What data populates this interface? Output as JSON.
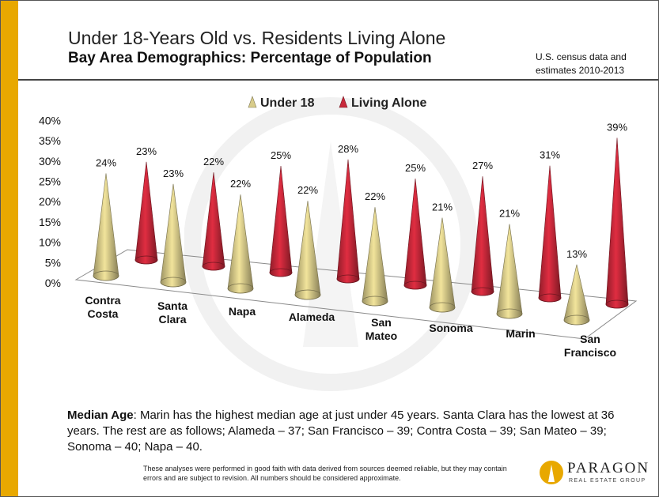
{
  "header": {
    "title": "Under 18-Years Old vs. Residents Living Alone",
    "subtitle": "Bay Area Demographics: Percentage of Population",
    "source_line1": "U.S. census data and",
    "source_line2": "estimates 2010-2013"
  },
  "colors": {
    "accent": "#e8a800",
    "under18": "#d8cc8a",
    "living_alone": "#c8283a",
    "divider": "#444444"
  },
  "chart_data": {
    "type": "bar",
    "style": "3d-cone",
    "categories": [
      [
        "Contra",
        "Costa"
      ],
      [
        "Santa",
        "Clara"
      ],
      [
        "Napa"
      ],
      [
        "Alameda"
      ],
      [
        "San",
        "Mateo"
      ],
      [
        "Sonoma"
      ],
      [
        "Marin"
      ],
      [
        "San",
        "Francisco"
      ]
    ],
    "series": [
      {
        "name": "Under 18",
        "values": [
          24,
          23,
          22,
          22,
          22,
          21,
          21,
          13
        ],
        "labels": [
          "24%",
          "23%",
          "22%",
          "22%",
          "22%",
          "21%",
          "21%",
          "13%"
        ]
      },
      {
        "name": "Living Alone",
        "values": [
          23,
          22,
          25,
          28,
          25,
          27,
          31,
          39
        ],
        "labels": [
          "23%",
          "22%",
          "25%",
          "28%",
          "25%",
          "27%",
          "31%",
          "39%"
        ]
      }
    ],
    "yticks": [
      "0%",
      "5%",
      "10%",
      "15%",
      "20%",
      "25%",
      "30%",
      "35%",
      "40%"
    ],
    "ylim": [
      0,
      40
    ],
    "legend": "top-center",
    "grid": false
  },
  "notes": {
    "median_label": "Median Age",
    "median_text": ": Marin has the highest median age at just under 45 years. Santa Clara has the lowest at 36 years. The rest are as follows; Alameda – 37; San Francisco – 39; Contra Costa – 39; San Mateo – 39; Sonoma – 40; Napa – 40.",
    "disclaimer": "These analyses were performed in good faith with data derived from sources deemed reliable, but they may contain errors and are subject to revision.  All numbers should be considered approximate."
  },
  "logo": {
    "name": "PARAGON",
    "tagline": "REAL ESTATE GROUP"
  }
}
